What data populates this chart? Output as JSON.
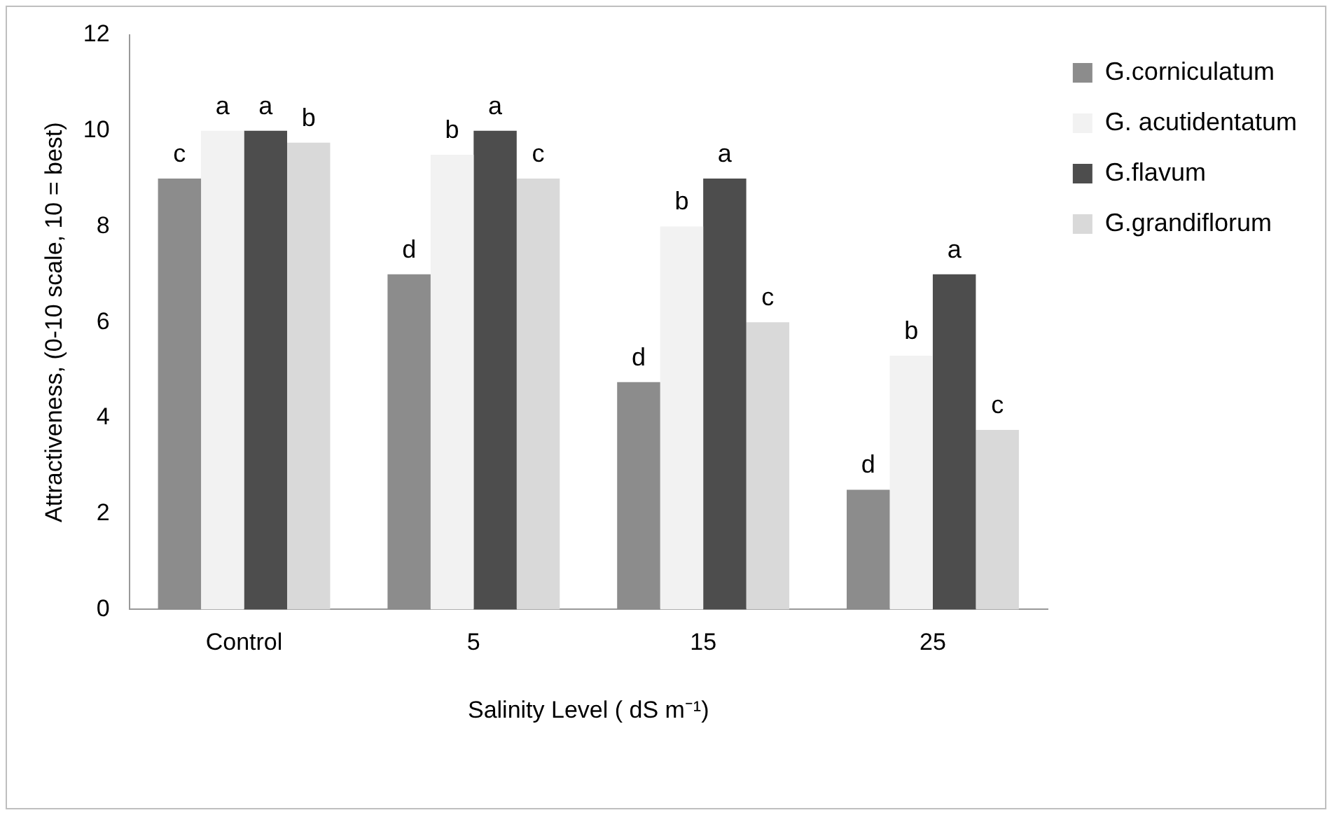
{
  "chart_data": {
    "type": "bar",
    "xlabel": "Salinity Level ( dS m⁻¹)",
    "ylabel": "Attractiveness, (0-10 scale, 10 = best)",
    "categories": [
      "Control",
      "5",
      "15",
      "25"
    ],
    "series": [
      {
        "name": "G.corniculatum",
        "color": "#8c8c8c",
        "values": [
          9,
          7,
          4.75,
          2.5
        ],
        "value_labels": [
          "c",
          "d",
          "d",
          "d"
        ]
      },
      {
        "name": "G. acutidentatum",
        "color": "#f2f2f2",
        "values": [
          10,
          9.5,
          8,
          5.3
        ],
        "value_labels": [
          "a",
          "b",
          "b",
          "b"
        ]
      },
      {
        "name": "G.flavum",
        "color": "#4d4d4d",
        "values": [
          10,
          10,
          9,
          7
        ],
        "value_labels": [
          "a",
          "a",
          "a",
          "a"
        ]
      },
      {
        "name": "G.grandiflorum",
        "color": "#d9d9d9",
        "values": [
          9.75,
          9,
          6,
          3.75
        ],
        "value_labels": [
          "b",
          "c",
          "c",
          "c"
        ]
      }
    ],
    "ylim": [
      0,
      12
    ],
    "yticks": [
      0,
      2,
      4,
      6,
      8,
      10,
      12
    ],
    "grid": false,
    "legend": "right"
  }
}
